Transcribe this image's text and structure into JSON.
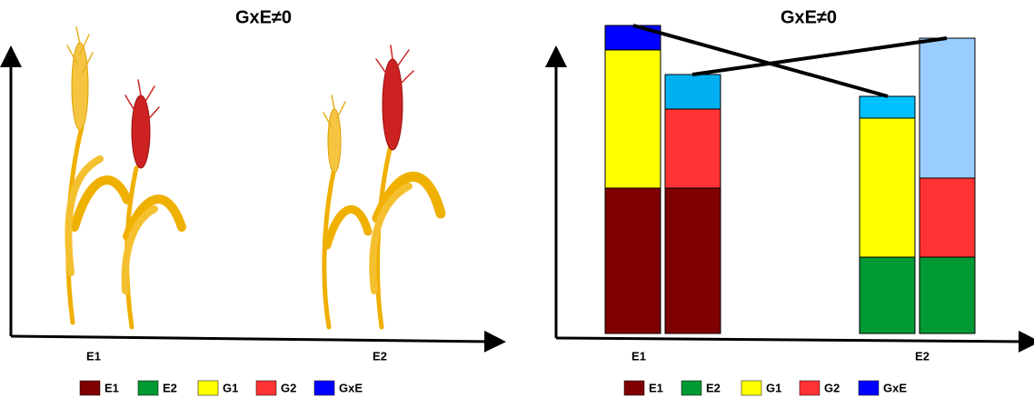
{
  "panels": [
    {
      "title": "GxE≠0",
      "x_labels": [
        "E1",
        "E2"
      ]
    },
    {
      "title": "GxE≠0",
      "x_labels": [
        "E1",
        "E2"
      ]
    }
  ],
  "legend": [
    {
      "label": "E1",
      "color": "#7f0000"
    },
    {
      "label": "E2",
      "color": "#009933"
    },
    {
      "label": "G1",
      "color": "#ffff00"
    },
    {
      "label": "G2",
      "color": "#ff3333"
    },
    {
      "label": "GxE",
      "color": "#0000ff"
    }
  ]
}
